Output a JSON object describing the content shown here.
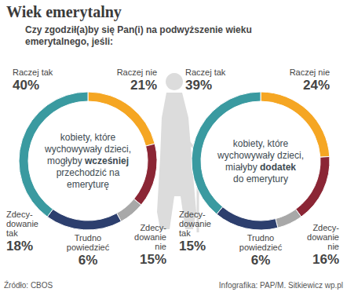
{
  "header": {
    "title": "Wiek emerytalny",
    "subtitle": "Czy zgodził(a)by się Pan(i) na podwyższenie wieku\nemerytalnego, jeśli:"
  },
  "chart_data": [
    {
      "type": "pie",
      "center_text": [
        "kobiety, które",
        "wychowywały dzieci,",
        "mogłyby wcześniej",
        "przechodzić na",
        "emeryturę"
      ],
      "center_emphasis": "wcześniej",
      "categories": [
        "Raczej nie",
        "Zdecy-\ndowanie\nnie",
        "Trudno\npowiedzieć",
        "Zdecy-\ndowanie\ntak",
        "Raczej tak"
      ],
      "values": [
        21,
        15,
        6,
        18,
        40
      ],
      "value_labels": [
        "21%",
        "15%",
        "6%",
        "18%",
        "40%"
      ],
      "colors": [
        "#f5a623",
        "#8b2635",
        "#a8a8a8",
        "#2d3f6e",
        "#3a9aa0"
      ],
      "data_labels": true
    },
    {
      "type": "pie",
      "center_text": [
        "kobiety, które",
        "wychowywały dzieci,",
        "miałyby dodatek",
        "do emerytury"
      ],
      "center_emphasis": "dodatek",
      "categories": [
        "Raczej nie",
        "Zdecy-\ndowanie\nnie",
        "Trudno\npowiedzieć",
        "Zdecy-\ndowanie\ntak",
        "Raczej tak"
      ],
      "values": [
        24,
        16,
        6,
        15,
        39
      ],
      "value_labels": [
        "24%",
        "16%",
        "6%",
        "15%",
        "39%"
      ],
      "colors": [
        "#f5a623",
        "#8b2635",
        "#a8a8a8",
        "#2d3f6e",
        "#3a9aa0"
      ],
      "data_labels": true
    }
  ],
  "footer": {
    "source": "Źródło: CBOS",
    "credit": "Infografika: PAP/M. Sitkiewicz wp.pl"
  }
}
